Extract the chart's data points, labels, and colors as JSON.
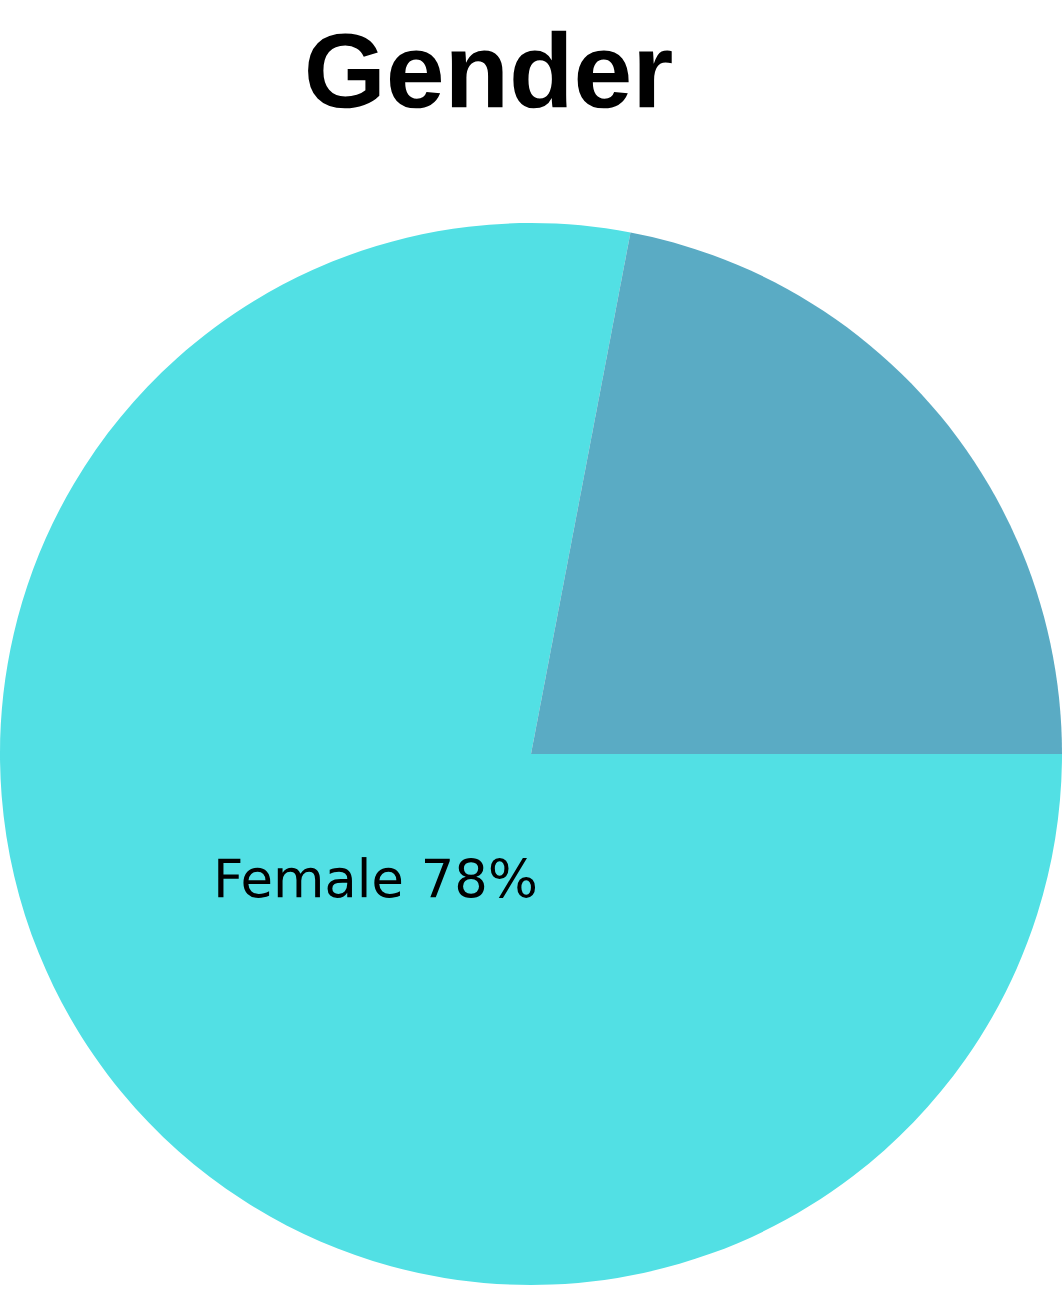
{
  "chart_data": {
    "type": "pie",
    "title": "Gender",
    "categories": [
      null,
      null
    ],
    "values": [
      78,
      22
    ],
    "colors": [
      "#52e0e4",
      "#5aabc4"
    ],
    "value_labels": [
      "Female 78%",
      null
    ],
    "legend": false
  }
}
